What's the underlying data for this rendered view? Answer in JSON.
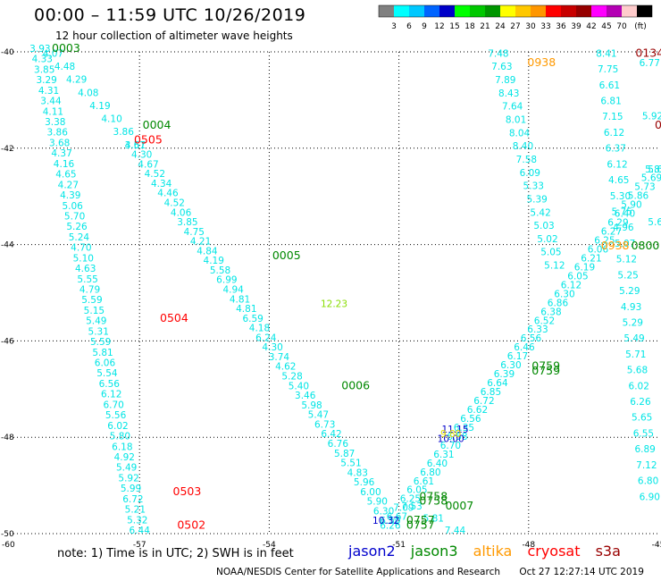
{
  "title": "00:00 – 11:59 UTC 10/26/2019",
  "subtitle": "12 hour collection of altimeter wave heights",
  "legend": {
    "unit": "(ft)",
    "ticks": [
      "3",
      "6",
      "9",
      "12",
      "15",
      "18",
      "21",
      "24",
      "27",
      "30",
      "33",
      "36",
      "39",
      "42",
      "45",
      "70"
    ],
    "colors": [
      "#808080",
      "#00ffff",
      "#00c8ff",
      "#0064ff",
      "#0000c8",
      "#00ff00",
      "#00c800",
      "#009600",
      "#ffff00",
      "#ffc800",
      "#ff9600",
      "#ff0000",
      "#c80000",
      "#960000",
      "#ff00ff",
      "#b400b4",
      "#ffcccc",
      "#000000"
    ]
  },
  "note": "note: 1) Time is in UTC; 2) SWH is in feet",
  "satellites": [
    {
      "name": "jason2",
      "color": "#0000cc"
    },
    {
      "name": "jason3",
      "color": "#008800"
    },
    {
      "name": "altika",
      "color": "#ff9900"
    },
    {
      "name": "cryosat",
      "color": "#ff0000"
    },
    {
      "name": "s3a",
      "color": "#990000"
    }
  ],
  "footer": {
    "credit": "NOAA/NESDIS Center for Satellite Applications and Research",
    "timestamp": "Oct 27 12:27:14 UTC 2019"
  },
  "chart_data": {
    "type": "scatter",
    "xlim": [
      -60,
      -45
    ],
    "ylim": [
      -50,
      -40
    ],
    "x_ticks": [
      -57,
      -54,
      -51,
      -48,
      -45
    ],
    "y_ticks": [
      -40,
      -42,
      -44,
      -46,
      -48,
      -50
    ],
    "x_tick_labels": [
      "-57",
      "-54",
      "-51",
      "-48",
      "-45"
    ],
    "y_tick_labels": [
      "-40",
      "-42",
      "-44",
      "-46",
      "-48",
      "-50"
    ],
    "x_corner_label": "-60",
    "grid": true,
    "tracks": [
      {
        "start": [
          -59.3,
          -40.0
        ],
        "end": [
          -57.0,
          -50.0
        ],
        "color": "#00e5e5",
        "values": [
          "3.93",
          "4.33",
          "3.85",
          "3.29",
          "4.31",
          "3.44",
          "4.11",
          "3.38",
          "3.86",
          "3.68",
          "4.37",
          "4.16",
          "4.65",
          "4.27",
          "4.39",
          "5.06",
          "5.70",
          "5.26",
          "5.24",
          "4.70",
          "5.10",
          "4.63",
          "5.55",
          "4.79",
          "5.59",
          "5.15",
          "5.49",
          "5.31",
          "5.59",
          "5.81",
          "6.06",
          "5.54",
          "6.56",
          "6.12",
          "6.70",
          "5.56",
          "6.02",
          "5.80",
          "6.18",
          "4.92",
          "5.49",
          "5.92",
          "5.99",
          "6.72",
          "5.21",
          "5.32",
          "6.44"
        ]
      },
      {
        "start": [
          -59.0,
          -40.1
        ],
        "end": [
          -57.1,
          -42.0
        ],
        "color": "#00e5e5",
        "values": [
          "4.07",
          "4.48",
          "4.29",
          "4.08",
          "4.19",
          "4.10",
          "3.86",
          "3.61"
        ]
      },
      {
        "start": [
          -57.1,
          -42.0
        ],
        "end": [
          -51.2,
          -49.8
        ],
        "color": "#00e5e5",
        "values": [
          "4.57",
          "4.30",
          "4.67",
          "4.52",
          "4.34",
          "4.46",
          "4.52",
          "4.06",
          "3.85",
          "4.75",
          "4.21",
          "4.84",
          "4.19",
          "5.58",
          "6.99",
          "4.94",
          "4.81",
          "4.81",
          "6.59",
          "4.18",
          "6.24",
          "4.30",
          "3.74",
          "4.62",
          "5.28",
          "5.40",
          "3.46",
          "5.98",
          "5.47",
          "6.73",
          "6.42",
          "6.76",
          "5.87",
          "5.51",
          "4.83",
          "5.96",
          "6.00",
          "5.90",
          "6.30",
          "6.50"
        ]
      },
      {
        "start": [
          -51.2,
          -49.9
        ],
        "end": [
          -45.0,
          -42.5
        ],
        "color": "#00e5e5",
        "values": [
          "6.26",
          "6.67",
          "7.09",
          "6.25",
          "6.05",
          "6.61",
          "6.80",
          "6.40",
          "6.31",
          "6.70",
          "6.58",
          "6.35",
          "6.56",
          "6.62",
          "6.72",
          "6.85",
          "6.64",
          "6.39",
          "6.30",
          "6.17",
          "6.46",
          "6.56",
          "6.33",
          "6.52",
          "6.38",
          "6.86",
          "6.30",
          "6.12",
          "6.05",
          "6.19",
          "6.21",
          "6.06",
          "6.25",
          "6.27",
          "6.29",
          "6.40",
          "5.90",
          "5.86",
          "5.73",
          "5.69",
          "5.60"
        ]
      },
      {
        "start": [
          -48.7,
          -40.1
        ],
        "end": [
          -47.4,
          -44.5
        ],
        "color": "#00e5e5",
        "values": [
          "7.48",
          "7.63",
          "7.89",
          "8.43",
          "7.64",
          "8.01",
          "8.04",
          "8.40",
          "7.58",
          "6.09",
          "5.33",
          "5.39",
          "5.42",
          "5.03",
          "5.02",
          "5.05",
          "5.12"
        ]
      },
      {
        "start": [
          -46.2,
          -40.1
        ],
        "end": [
          -45.2,
          -49.3
        ],
        "color": "#00e5e5",
        "values": [
          "8.41",
          "7.75",
          "6.61",
          "6.81",
          "7.15",
          "6.12",
          "6.37",
          "6.12",
          "4.65",
          "5.30",
          "5.75",
          "4.96",
          "5.07",
          "5.12",
          "5.25",
          "5.29",
          "4.93",
          "5.29",
          "5.49",
          "5.71",
          "5.68",
          "6.02",
          "6.26",
          "5.65",
          "6.55",
          "6.89",
          "7.12",
          "6.80",
          "6.90"
        ]
      },
      {
        "start": [
          -50.7,
          -49.5
        ],
        "end": [
          -49.7,
          -50.0
        ],
        "color": "#00e5e5",
        "values": [
          "7.53",
          "5.81",
          "7.44"
        ]
      },
      {
        "start": [
          -45.2,
          -40.3
        ],
        "end": [
          -45.0,
          -43.6
        ],
        "color": "#00e5e5",
        "values": [
          "6.77",
          "5.92",
          "5.83",
          "5.64"
        ]
      }
    ],
    "special_values": [
      {
        "x": -52.5,
        "y": -45.3,
        "text": "12.23",
        "color": "#88dd00"
      },
      {
        "x": -51.3,
        "y": -49.8,
        "text": "10.32",
        "color": "#0000cc"
      },
      {
        "x": -49.7,
        "y": -47.9,
        "text": "11.15",
        "color": "#0000cc"
      },
      {
        "x": -49.8,
        "y": -48.1,
        "text": "10.00",
        "color": "#0000cc"
      },
      {
        "x": -49.8,
        "y": -48.0,
        "text": "9.80",
        "color": "#dddd00"
      }
    ],
    "labels": [
      {
        "x": -58.7,
        "y": -40.0,
        "text": "0003",
        "color": "#008800"
      },
      {
        "x": -56.6,
        "y": -41.6,
        "text": "0004",
        "color": "#008800"
      },
      {
        "x": -56.8,
        "y": -41.9,
        "text": "0505",
        "color": "#ff0000"
      },
      {
        "x": -53.6,
        "y": -44.3,
        "text": "0005",
        "color": "#008800"
      },
      {
        "x": -56.2,
        "y": -45.6,
        "text": "0504",
        "color": "#ff0000"
      },
      {
        "x": -52.0,
        "y": -47.0,
        "text": "0006",
        "color": "#008800"
      },
      {
        "x": -55.9,
        "y": -49.2,
        "text": "0503",
        "color": "#ff0000"
      },
      {
        "x": -55.8,
        "y": -49.9,
        "text": "0502",
        "color": "#ff0000"
      },
      {
        "x": -50.2,
        "y": -49.3,
        "text": "0758",
        "color": "#008800"
      },
      {
        "x": -50.2,
        "y": -49.4,
        "text": "0758",
        "color": "#008800"
      },
      {
        "x": -49.6,
        "y": -49.5,
        "text": "0007",
        "color": "#008800"
      },
      {
        "x": -50.5,
        "y": -49.8,
        "text": "0757",
        "color": "#008800"
      },
      {
        "x": -50.5,
        "y": -49.9,
        "text": "0757",
        "color": "#008800"
      },
      {
        "x": -47.6,
        "y": -46.6,
        "text": "0759",
        "color": "#008800"
      },
      {
        "x": -47.6,
        "y": -46.7,
        "text": "0759",
        "color": "#008800"
      },
      {
        "x": -47.7,
        "y": -40.3,
        "text": "0938",
        "color": "#ff9900"
      },
      {
        "x": -46.0,
        "y": -44.1,
        "text": "0938",
        "color": "#ff9900"
      },
      {
        "x": -45.3,
        "y": -44.1,
        "text": "0800",
        "color": "#008800"
      },
      {
        "x": -45.2,
        "y": -40.1,
        "text": "0134",
        "color": "#990000"
      },
      {
        "x": -45.0,
        "y": -41.6,
        "text": "0",
        "color": "#990000"
      }
    ]
  }
}
